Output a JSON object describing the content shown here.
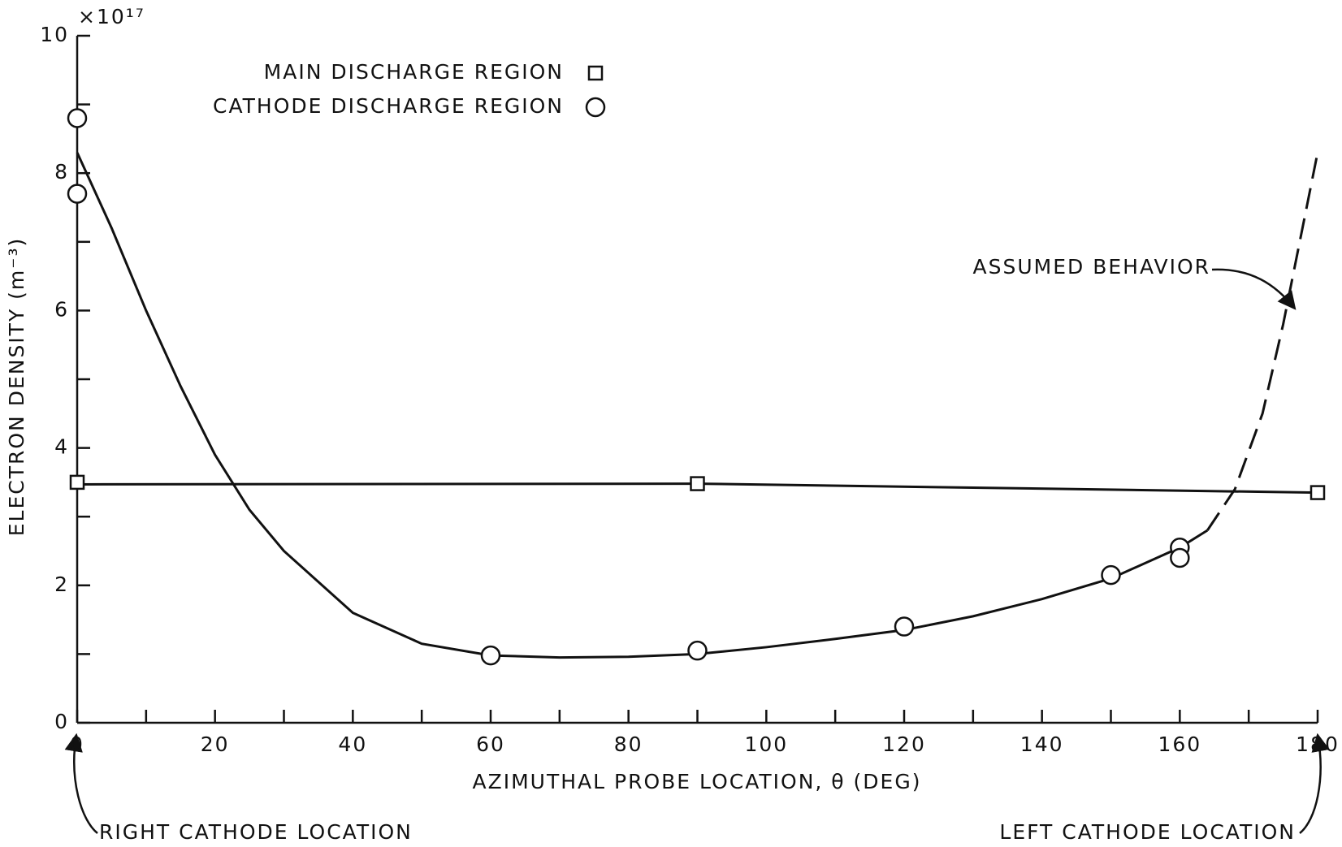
{
  "chart_data": {
    "type": "scatter",
    "x_label": "AZIMUTHAL PROBE LOCATION, θ (DEG)",
    "y_label": "ELECTRON DENSITY (m⁻³)",
    "y_multiplier": "×10¹⁷",
    "xlim": [
      0,
      180
    ],
    "ylim": [
      0,
      10
    ],
    "xticks": [
      0,
      20,
      40,
      60,
      80,
      100,
      120,
      140,
      160,
      180
    ],
    "xminor_ticks": [
      10,
      30,
      50,
      70,
      90,
      110,
      130,
      150,
      170
    ],
    "yticks": [
      0,
      2,
      4,
      6,
      8,
      10
    ],
    "yminor_ticks": [
      1,
      3,
      5,
      7,
      9
    ],
    "color": "#111111",
    "series": [
      {
        "name": "MAIN DISCHARGE REGION",
        "marker": "square",
        "x": [
          0,
          90,
          180
        ],
        "values": [
          3.5,
          3.48,
          3.35
        ]
      },
      {
        "name": "CATHODE DISCHARGE REGION",
        "marker": "circle",
        "x": [
          0,
          0,
          60,
          90,
          120,
          150,
          160,
          160
        ],
        "values": [
          8.8,
          7.7,
          0.98,
          1.05,
          1.4,
          2.15,
          2.55,
          2.4
        ]
      }
    ],
    "curves": [
      {
        "style": "solid",
        "x": [
          0,
          90,
          180
        ],
        "values": [
          3.47,
          3.48,
          3.35
        ]
      },
      {
        "style": "solid",
        "x": [
          0,
          5,
          10,
          15,
          20,
          25,
          30,
          40,
          50,
          60,
          70,
          80,
          90,
          100,
          110,
          120,
          130,
          140,
          150,
          160,
          164
        ],
        "values": [
          8.3,
          7.2,
          6.0,
          4.9,
          3.9,
          3.1,
          2.5,
          1.6,
          1.15,
          0.98,
          0.95,
          0.96,
          1.0,
          1.1,
          1.22,
          1.35,
          1.55,
          1.8,
          2.1,
          2.55,
          2.8
        ]
      },
      {
        "style": "dashed",
        "x": [
          164,
          168,
          172,
          175,
          178,
          180
        ],
        "values": [
          2.8,
          3.4,
          4.5,
          5.8,
          7.3,
          8.3
        ]
      }
    ],
    "annotations": [
      "ASSUMED BEHAVIOR",
      "RIGHT CATHODE LOCATION",
      "LEFT CATHODE LOCATION"
    ]
  }
}
